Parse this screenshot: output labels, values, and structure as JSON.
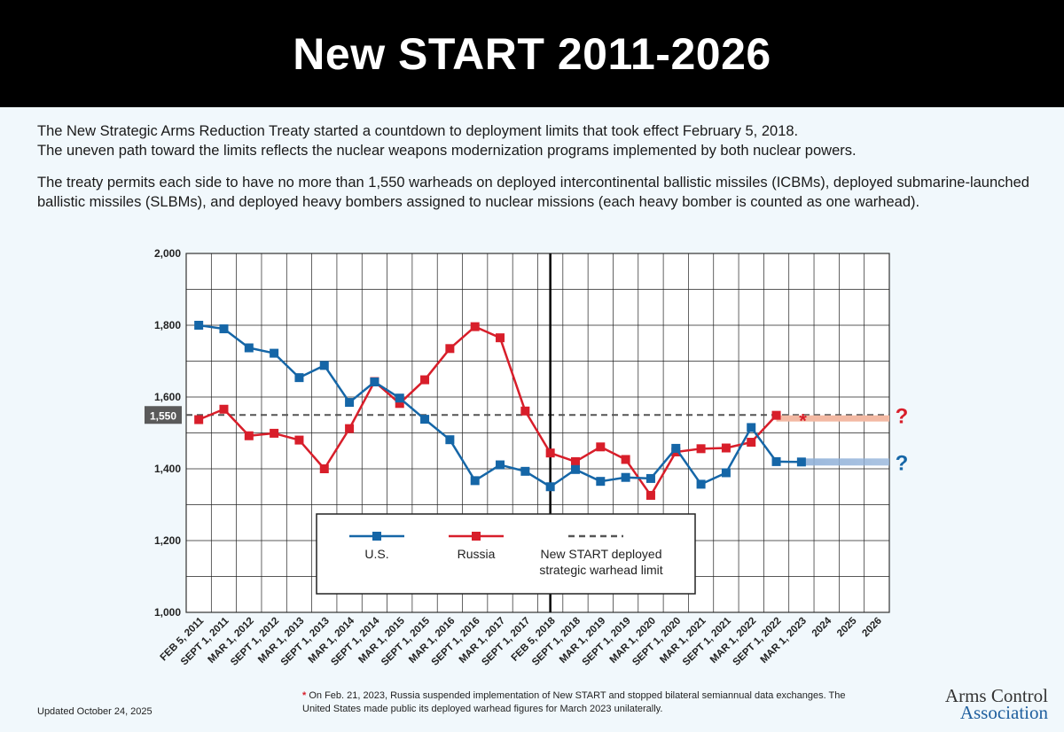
{
  "header": {
    "title": "New START 2011-2026"
  },
  "intro": {
    "line1": "The New Strategic Arms Reduction Treaty started a countdown to deployment limits that took effect February 5, 2018.",
    "line2": "The uneven path toward the limits reflects the nuclear weapons modernization programs implemented by both nuclear powers.",
    "para2": "The treaty permits each side to have no more than 1,550 warheads on deployed intercontinental ballistic missiles (ICBMs), deployed submarine-launched ballistic missiles (SLBMs), and deployed heavy bombers assigned to nuclear missions (each heavy bomber is counted as one warhead)."
  },
  "footnote": {
    "marker": "*",
    "text": "On Feb. 21, 2023, Russia suspended implementation of New START and stopped bilateral semiannual data exchanges. The United States made public its deployed warhead figures for March 2023 unilaterally."
  },
  "updated": "Updated October 24, 2025",
  "logo": {
    "line1": "Arms Control",
    "line2": "Association"
  },
  "colors": {
    "us": "#1566a7",
    "russia": "#d81e2a",
    "limit": "#555555"
  },
  "chart_data": {
    "type": "line",
    "categories": [
      "FEB 5, 2011",
      "SEPT 1, 2011",
      "MAR 1, 2012",
      "SEPT 1, 2012",
      "MAR 1, 2013",
      "SEPT 1, 2013",
      "MAR 1, 2014",
      "SEPT 1, 2014",
      "MAR 1, 2015",
      "SEPT 1, 2015",
      "MAR 1, 2016",
      "SEPT 1, 2016",
      "MAR 1, 2017",
      "SEPT 1, 2017",
      "FEB 5, 2018",
      "SEPT 1, 2018",
      "MAR 1, 2019",
      "SEPT 1, 2019",
      "MAR 1, 2020",
      "SEPT 1, 2020",
      "MAR 1, 2021",
      "SEPT 1, 2021",
      "MAR 1, 2022",
      "SEPT 1, 2022",
      "MAR 1, 2023",
      "2024",
      "2025",
      "2026"
    ],
    "ylim": [
      1000,
      2000
    ],
    "yticks": [
      1000,
      1200,
      1400,
      1600,
      1800,
      2000
    ],
    "ytick_labels": [
      "1,000",
      "1,200",
      "1,400",
      "1,600",
      "1,800",
      "2,000"
    ],
    "limit": {
      "value": 1550,
      "label": "1,550",
      "legend": "New START deployed strategic warhead limit"
    },
    "series": [
      {
        "name": "U.S.",
        "values": [
          1800,
          1790,
          1737,
          1722,
          1654,
          1688,
          1585,
          1642,
          1597,
          1538,
          1481,
          1367,
          1411,
          1393,
          1350,
          1398,
          1365,
          1376,
          1373,
          1457,
          1357,
          1389,
          1515,
          1420,
          1419,
          null,
          null,
          null
        ]
      },
      {
        "name": "Russia",
        "values": [
          1537,
          1566,
          1492,
          1499,
          1480,
          1400,
          1512,
          1643,
          1582,
          1648,
          1735,
          1796,
          1765,
          1561,
          1444,
          1420,
          1461,
          1426,
          1326,
          1447,
          1456,
          1458,
          1474,
          1549,
          null,
          null,
          null,
          null
        ]
      }
    ],
    "unknown_marker": "?",
    "asterisk": "*",
    "vertical_marker": "FEB 5, 2018",
    "grid": true,
    "legend_position": "bottom-center"
  }
}
